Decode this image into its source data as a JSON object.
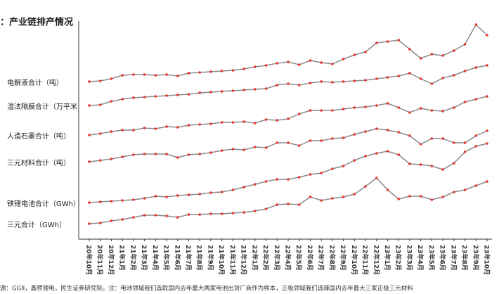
{
  "chart_data": {
    "type": "line",
    "title": "：产业链排产情况",
    "source": "源：GGII，鑫椤锂电，民生证券研究院。注：电池领域我们选取国内去年最大两家电池出货厂商作为样本，正极领域我们选择国内去年最大三家正极三元材料",
    "categories": [
      "20年10月",
      "20年11月",
      "20年12月",
      "21年1月",
      "21年2月",
      "21年3月",
      "21年4月",
      "21年5月",
      "21年6月",
      "21年7月",
      "21年8月",
      "21年9月",
      "21年10月",
      "21年11月",
      "21年12月",
      "22年1月",
      "22年2月",
      "22年3月",
      "22年4月",
      "22年5月",
      "22年6月",
      "22年7月",
      "22年8月",
      "22年9月",
      "22年10月",
      "22年11月",
      "22年12月",
      "23年1月",
      "23年2月",
      "23年3月",
      "23年4月",
      "23年5月",
      "23年6月",
      "23年7月",
      "23年8月",
      "23年9月",
      "23年10月"
    ],
    "ylim": [
      60,
      400
    ],
    "line_color": "#8a8a8a",
    "marker_color": "#e8342f",
    "series": [
      {
        "name": "电解液合计（吨）",
        "values": [
          284,
          285,
          288,
          293,
          294,
          294,
          293,
          294,
          292,
          296,
          297,
          298,
          299,
          300,
          302,
          305,
          307,
          310,
          312,
          308,
          314,
          311,
          309,
          316,
          322,
          326,
          339,
          341,
          343,
          330,
          317,
          323,
          321,
          328,
          337,
          365,
          350
        ]
      },
      {
        "name": "湿法隔膜合计（万平米",
        "values": [
          250,
          251,
          256,
          259,
          261,
          262,
          263,
          264,
          265,
          266,
          268,
          269,
          270,
          271,
          272,
          273,
          274,
          279,
          281,
          279,
          282,
          284,
          283,
          284,
          285,
          286,
          288,
          290,
          292,
          296,
          288,
          281,
          289,
          293,
          299,
          304,
          307
        ]
      },
      {
        "name": "人造石墨合计（吨）",
        "values": [
          208,
          210,
          213,
          215,
          215,
          218,
          217,
          220,
          219,
          222,
          223,
          224,
          226,
          226,
          227,
          225,
          230,
          229,
          231,
          238,
          243,
          243,
          243,
          245,
          247,
          248,
          250,
          253,
          247,
          240,
          246,
          243,
          242,
          247,
          255,
          259,
          263
        ]
      },
      {
        "name": "三元材料合计（吨）",
        "values": [
          170,
          172,
          174,
          177,
          180,
          181,
          181,
          181,
          176,
          180,
          181,
          183,
          186,
          188,
          187,
          191,
          190,
          197,
          197,
          193,
          200,
          200,
          203,
          204,
          209,
          213,
          217,
          215,
          212,
          207,
          195,
          203,
          203,
          197,
          197,
          207,
          214
        ]
      },
      {
        "name": "铁锂电池合计（GWh）",
        "values": [
          112,
          113,
          114,
          115,
          116,
          118,
          121,
          120,
          122,
          123,
          124,
          126,
          127,
          130,
          134,
          138,
          142,
          145,
          145,
          148,
          152,
          154,
          160,
          164,
          172,
          178,
          182,
          185,
          180,
          167,
          166,
          164,
          159,
          168,
          184,
          192,
          196
        ]
      },
      {
        "name": "三元合计（GWh）",
        "values": [
          82,
          83,
          86,
          88,
          91,
          94,
          94,
          93,
          91,
          95,
          95,
          96,
          96,
          97,
          98,
          100,
          103,
          109,
          110,
          109,
          120,
          115,
          118,
          120,
          124,
          135,
          147,
          130,
          117,
          121,
          121,
          116,
          120,
          127,
          130,
          136,
          142
        ]
      }
    ]
  }
}
